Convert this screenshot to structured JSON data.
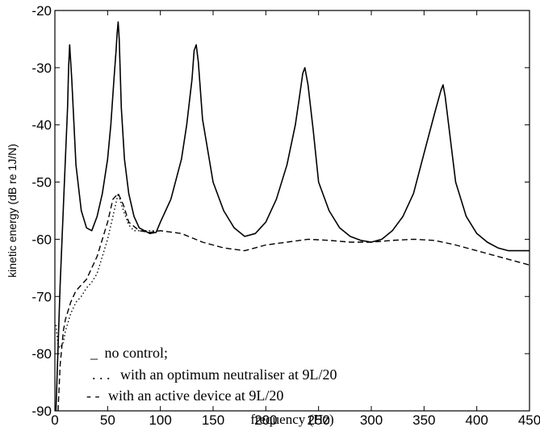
{
  "chart_data": {
    "type": "line",
    "xlabel": "frequency (Hz)",
    "ylabel": "kinetic energy (dB re 1J/N)",
    "xlim": [
      0,
      450
    ],
    "ylim": [
      -90,
      -20
    ],
    "x_ticks": [
      "0",
      "50",
      "100",
      "150",
      "200",
      "250",
      "300",
      "350",
      "400",
      "450"
    ],
    "y_ticks": [
      "-20",
      "-30",
      "-40",
      "-50",
      "-60",
      "-70",
      "-80",
      "-90"
    ],
    "grid": false,
    "legend_position": "bottom-left (inside)",
    "legend": [
      {
        "marker": "_",
        "text": "no control;"
      },
      {
        "marker": ". . .",
        "text": "with an optimum neutraliser at 9L/20"
      },
      {
        "marker": "- -",
        "text": "with an active device at 9L/20"
      }
    ],
    "series": [
      {
        "style": "solid",
        "x": [
          1,
          5,
          9,
          12,
          13,
          14,
          16,
          20,
          25,
          30,
          35,
          40,
          45,
          50,
          53,
          56,
          58,
          59,
          60,
          61,
          63,
          66,
          70,
          75,
          80,
          90,
          96,
          100,
          110,
          120,
          125,
          130,
          132,
          134,
          136,
          140,
          150,
          160,
          170,
          180,
          190,
          200,
          210,
          220,
          228,
          232,
          235,
          237,
          240,
          245,
          250,
          260,
          270,
          280,
          290,
          300,
          310,
          320,
          330,
          340,
          350,
          360,
          366,
          368,
          370,
          374,
          380,
          390,
          400,
          410,
          420,
          430,
          440,
          450
        ],
        "y": [
          -90,
          -68,
          -50,
          -37,
          -30,
          -26,
          -32,
          -47,
          -55,
          -58,
          -58.5,
          -56,
          -52,
          -46,
          -40,
          -32,
          -27,
          -24,
          -22,
          -25,
          -37,
          -46,
          -52,
          -56,
          -58,
          -59,
          -58.8,
          -57,
          -53,
          -46,
          -40,
          -32,
          -27,
          -26,
          -29,
          -39,
          -50,
          -55,
          -58,
          -59.5,
          -59,
          -57,
          -53,
          -47,
          -40,
          -35,
          -31,
          -30,
          -33,
          -41,
          -50,
          -55,
          -58,
          -59.5,
          -60.2,
          -60.5,
          -60,
          -58.5,
          -56,
          -52,
          -45,
          -38,
          -34,
          -33,
          -35,
          -41,
          -50,
          -56,
          -59,
          -60.5,
          -61.5,
          -62,
          -62,
          -62
        ]
      },
      {
        "style": "dotted",
        "x": [
          1,
          3,
          5,
          8,
          10,
          15,
          20,
          25,
          30,
          35,
          40,
          45,
          50,
          55,
          60,
          65,
          70,
          75,
          80,
          90,
          100
        ],
        "y": [
          -75,
          -78.5,
          -79,
          -78,
          -76,
          -73,
          -71,
          -70,
          -68.5,
          -67.5,
          -66,
          -63,
          -60,
          -56,
          -52,
          -55,
          -57.5,
          -58.5,
          -58.5,
          -58.5,
          -58.5
        ]
      },
      {
        "style": "dashed",
        "x": [
          3,
          5,
          8,
          10,
          15,
          20,
          30,
          40,
          50,
          55,
          60,
          65,
          70,
          80,
          90,
          100,
          120,
          140,
          160,
          180,
          200,
          220,
          240,
          260,
          280,
          300,
          320,
          340,
          360,
          380,
          400,
          420,
          440,
          450
        ],
        "y": [
          -90,
          -82,
          -76,
          -74,
          -71,
          -69,
          -67,
          -63,
          -57,
          -53,
          -52,
          -54,
          -57,
          -58.5,
          -58.8,
          -58.5,
          -59,
          -60.5,
          -61.5,
          -62,
          -61,
          -60.5,
          -60,
          -60.2,
          -60.5,
          -60.5,
          -60.2,
          -60,
          -60.2,
          -61,
          -62,
          -63,
          -64,
          -64.5
        ]
      }
    ]
  }
}
